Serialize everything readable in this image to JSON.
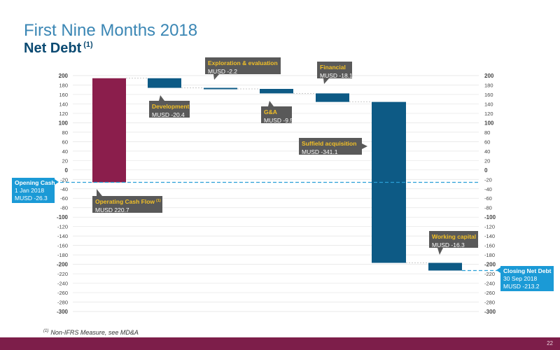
{
  "title": "First Nine Months 2018",
  "subtitle": "Net Debt",
  "subtitle_note": "(1)",
  "footnote_mark": "(1)",
  "footnote_text": "Non-IFRS Measure, see MD&A",
  "page_number": "22",
  "colors": {
    "positive": "#8b1e4c",
    "negative": "#0d5a85",
    "callout_dark": "#595959",
    "callout_title": "#f2c027",
    "callout_blue": "#1b9ad6",
    "bottom_bar": "#7d1e4a",
    "dashed": "#2a9fd6"
  },
  "chart_data": {
    "type": "waterfall",
    "ylim": [
      -300,
      200
    ],
    "ytick_step": 20,
    "grid": true,
    "yticks_left": [
      "200",
      "180",
      "160",
      "140",
      "120",
      "100",
      "80",
      "60",
      "40",
      "20",
      "0",
      "-20",
      "-40",
      "-60",
      "-80",
      "-100",
      "-120",
      "-140",
      "-160",
      "-180",
      "-200",
      "-220",
      "-240",
      "-260",
      "-280",
      "-300"
    ],
    "yticks_right": [
      "200",
      "180",
      "160",
      "140",
      "120",
      "100",
      "80",
      "60",
      "40",
      "20",
      "0",
      "-20",
      "-40",
      "-60",
      "-80",
      "-100",
      "-120",
      "-140",
      "-160",
      "-180",
      "-200",
      "-220",
      "-240",
      "-260",
      "-280",
      "-300"
    ],
    "opening": {
      "title": "Opening Cash",
      "line2": "1 Jan 2018",
      "value_label": "MUSD -26.3",
      "value": -26.3
    },
    "steps": [
      {
        "title": "Operating Cash Flow",
        "note": "(1)",
        "value_label": "MUSD 220.7",
        "value": 220.7,
        "start": -26.3,
        "end": 194.4
      },
      {
        "title": "Development",
        "value_label": "MUSD -20.4",
        "value": -20.4,
        "start": 194.4,
        "end": 174.0
      },
      {
        "title": "Exploration & evaluation",
        "value_label": "MUSD -2.2",
        "value": -2.2,
        "start": 174.0,
        "end": 171.8
      },
      {
        "title": "G&A",
        "value_label": "MUSD -9.5",
        "value": -9.5,
        "start": 171.8,
        "end": 162.3
      },
      {
        "title": "Financial",
        "value_label": "MUSD -18.1",
        "value": -18.1,
        "start": 162.3,
        "end": 144.2
      },
      {
        "title": "Suffield acquisition",
        "value_label": "MUSD -341.1",
        "value": -341.1,
        "start": 144.2,
        "end": -196.9
      },
      {
        "title": "Working capital",
        "value_label": "MUSD -16.3",
        "value": -16.3,
        "start": -196.9,
        "end": -213.2
      }
    ],
    "closing": {
      "title": "Closing Net Debt",
      "line2": "30 Sep 2018",
      "value_label": "MUSD -213.2",
      "value": -213.2
    }
  }
}
